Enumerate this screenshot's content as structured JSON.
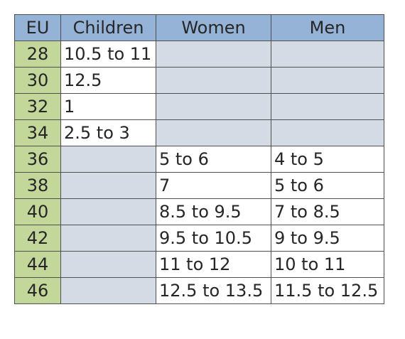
{
  "table": {
    "headers": [
      "EU",
      "Children",
      "Women",
      "Men"
    ],
    "rows": [
      {
        "eu": "28",
        "children": "10.5 to 11",
        "women": "",
        "men": ""
      },
      {
        "eu": "30",
        "children": "12.5",
        "women": "",
        "men": ""
      },
      {
        "eu": "32",
        "children": "1",
        "women": "",
        "men": ""
      },
      {
        "eu": "34",
        "children": "2.5 to 3",
        "women": "",
        "men": ""
      },
      {
        "eu": "36",
        "children": "",
        "women": "5 to 6",
        "men": "4 to 5"
      },
      {
        "eu": "38",
        "children": "",
        "women": "7",
        "men": "5 to 6"
      },
      {
        "eu": "40",
        "children": "",
        "women": "8.5 to 9.5",
        "men": "7 to 8.5"
      },
      {
        "eu": "42",
        "children": "",
        "women": "9.5 to 10.5",
        "men": "9 to 9.5"
      },
      {
        "eu": "44",
        "children": "",
        "women": "11 to 12",
        "men": "10 to 11"
      },
      {
        "eu": "46",
        "children": "",
        "women": "12.5 to 13.5",
        "men": "11.5 to 12.5"
      }
    ],
    "colors": {
      "header_fill": "#95b3d7",
      "eu_fill": "#c4d79b",
      "empty_fill": "#d4dbe5",
      "value_fill": "#ffffff",
      "border": "#505050"
    }
  }
}
